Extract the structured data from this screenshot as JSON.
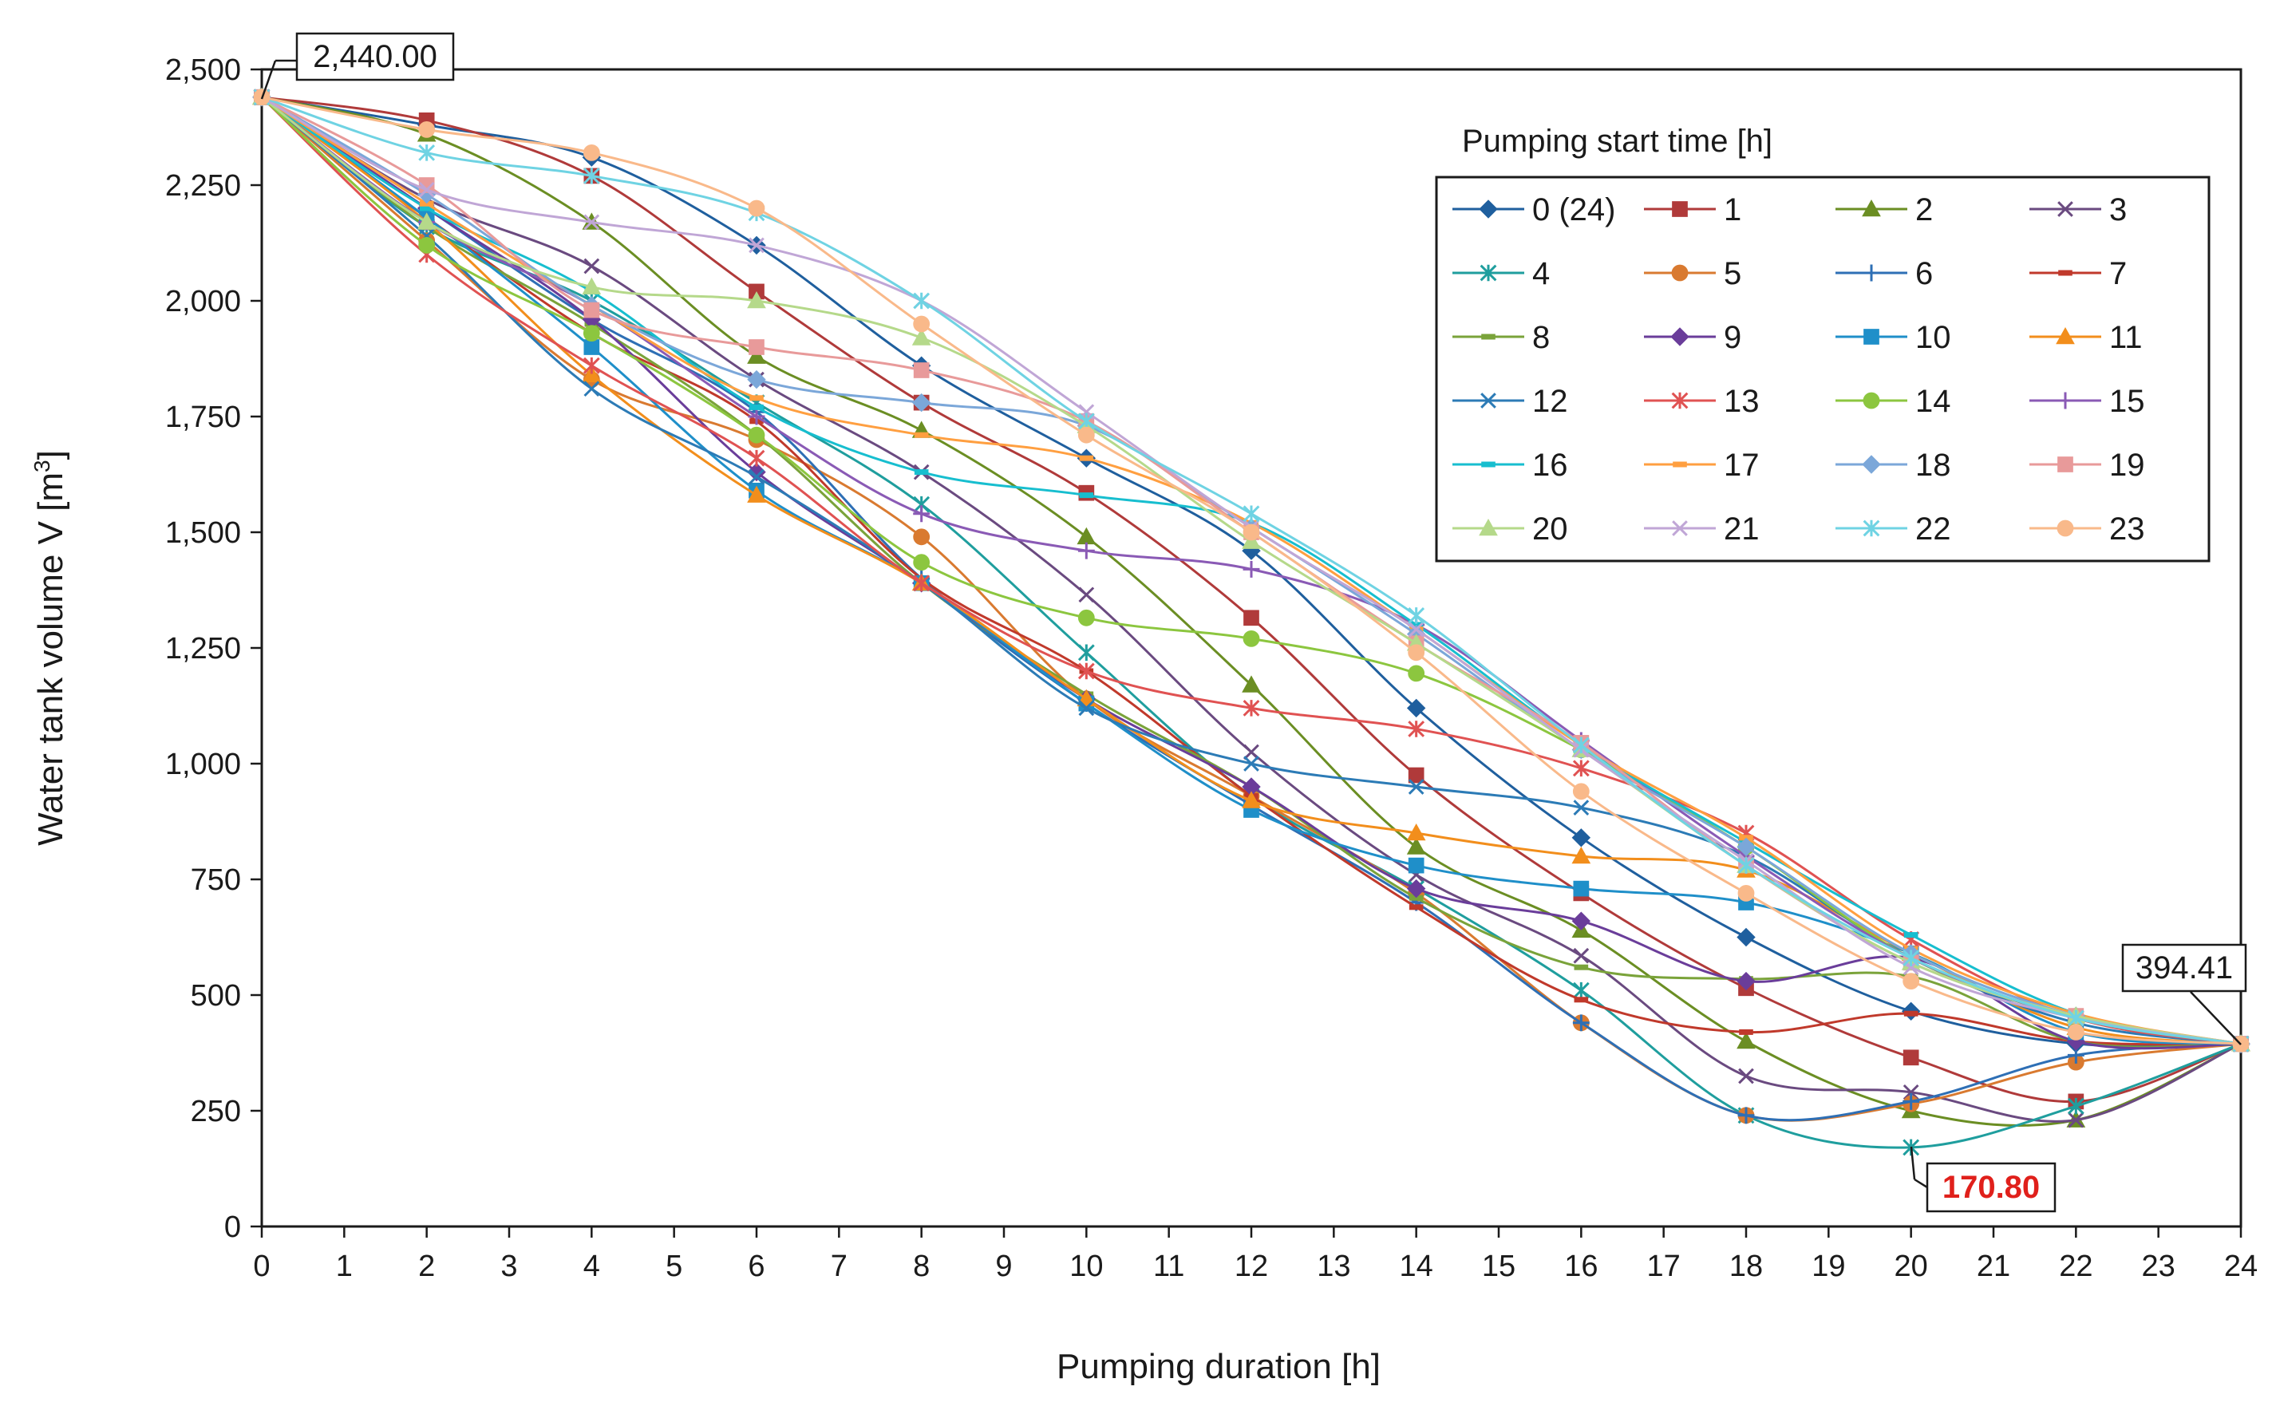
{
  "chart_data": {
    "type": "line",
    "title": "",
    "xlabel": "Pumping  duration [h]",
    "ylabel": "Water tank volume  V [m³]",
    "ylabel_main": "Water tank volume  V [m",
    "ylabel_sup": "3",
    "ylabel_end": "]",
    "xlim": [
      0,
      24
    ],
    "ylim": [
      0,
      2500
    ],
    "x_ticks": [
      "0",
      "1",
      "2",
      "3",
      "4",
      "5",
      "6",
      "7",
      "8",
      "9",
      "10",
      "11",
      "12",
      "13",
      "14",
      "15",
      "16",
      "17",
      "18",
      "19",
      "20",
      "21",
      "22",
      "23",
      "24"
    ],
    "y_ticks": [
      "0",
      "250",
      "500",
      "750",
      "1,000",
      "1,250",
      "1,500",
      "1,750",
      "2,000",
      "2,250",
      "2,500"
    ],
    "grid": false,
    "x": [
      0,
      2,
      4,
      6,
      8,
      10,
      12,
      14,
      16,
      18,
      20,
      22,
      24
    ],
    "legend": {
      "title": "Pumping start time [h]",
      "position": "top-right"
    },
    "series": [
      {
        "name": "0 (24)",
        "color": "#1f5f9e",
        "marker": "diamond",
        "values": [
          2440,
          2380,
          2310,
          2120,
          1860,
          1660,
          1460,
          1120,
          840,
          625,
          465,
          395,
          394.41
        ]
      },
      {
        "name": "1",
        "color": "#b03a3a",
        "marker": "square",
        "values": [
          2440,
          2390,
          2270,
          2020,
          1780,
          1585,
          1315,
          975,
          720,
          515,
          365,
          270,
          394.41
        ]
      },
      {
        "name": "2",
        "color": "#6b8e23",
        "marker": "triangle",
        "values": [
          2440,
          2360,
          2170,
          1880,
          1720,
          1490,
          1170,
          820,
          640,
          400,
          250,
          230,
          394.41
        ]
      },
      {
        "name": "3",
        "color": "#6a4a80",
        "marker": "x",
        "values": [
          2440,
          2220,
          2075,
          1830,
          1630,
          1365,
          1025,
          760,
          585,
          325,
          290,
          230,
          394.41
        ]
      },
      {
        "name": "4",
        "color": "#1f9e9e",
        "marker": "star",
        "values": [
          2440,
          2160,
          2000,
          1780,
          1560,
          1240,
          930,
          730,
          510,
          240,
          170.8,
          260,
          394.41
        ]
      },
      {
        "name": "5",
        "color": "#d97a30",
        "marker": "circle",
        "values": [
          2440,
          2130,
          1830,
          1700,
          1490,
          1140,
          930,
          720,
          440,
          240,
          265,
          355,
          394.41
        ]
      },
      {
        "name": "6",
        "color": "#2e6fb5",
        "marker": "plus",
        "values": [
          2440,
          2200,
          1960,
          1760,
          1400,
          1130,
          910,
          700,
          440,
          240,
          270,
          370,
          394.41
        ]
      },
      {
        "name": "7",
        "color": "#c0392b",
        "marker": "dash",
        "values": [
          2440,
          2180,
          1930,
          1740,
          1400,
          1200,
          930,
          690,
          490,
          420,
          460,
          400,
          394.41
        ]
      },
      {
        "name": "8",
        "color": "#7aa33a",
        "marker": "dash",
        "values": [
          2440,
          2160,
          1950,
          1710,
          1390,
          1150,
          950,
          710,
          560,
          535,
          540,
          400,
          394.41
        ]
      },
      {
        "name": "9",
        "color": "#6a3d9a",
        "marker": "diamond",
        "values": [
          2440,
          2200,
          1960,
          1630,
          1390,
          1140,
          950,
          730,
          660,
          530,
          580,
          400,
          394.41
        ]
      },
      {
        "name": "10",
        "color": "#1f8fc9",
        "marker": "square",
        "values": [
          2440,
          2180,
          1900,
          1590,
          1390,
          1130,
          900,
          780,
          730,
          700,
          590,
          420,
          394.41
        ]
      },
      {
        "name": "11",
        "color": "#f28e1c",
        "marker": "triangle",
        "values": [
          2440,
          2170,
          1840,
          1580,
          1390,
          1140,
          920,
          850,
          800,
          770,
          590,
          430,
          394.41
        ]
      },
      {
        "name": "12",
        "color": "#2c7bb6",
        "marker": "x",
        "values": [
          2440,
          2140,
          1810,
          1620,
          1390,
          1120,
          1000,
          950,
          905,
          800,
          580,
          440,
          394.41
        ]
      },
      {
        "name": "13",
        "color": "#e05252",
        "marker": "star",
        "values": [
          2440,
          2100,
          1860,
          1660,
          1390,
          1200,
          1120,
          1075,
          990,
          850,
          620,
          450,
          394.41
        ]
      },
      {
        "name": "14",
        "color": "#8cc63f",
        "marker": "circle",
        "values": [
          2440,
          2120,
          1930,
          1710,
          1435,
          1315,
          1270,
          1195,
          1030,
          820,
          580,
          450,
          394.41
        ]
      },
      {
        "name": "15",
        "color": "#8a5ab5",
        "marker": "plus",
        "values": [
          2440,
          2170,
          1990,
          1750,
          1540,
          1460,
          1420,
          1300,
          1050,
          800,
          580,
          450,
          394.41
        ]
      },
      {
        "name": "16",
        "color": "#17becf",
        "marker": "dash",
        "values": [
          2440,
          2200,
          2020,
          1770,
          1630,
          1580,
          1520,
          1300,
          1040,
          830,
          630,
          460,
          394.41
        ]
      },
      {
        "name": "17",
        "color": "#ff9f40",
        "marker": "dash",
        "values": [
          2440,
          2210,
          1990,
          1790,
          1710,
          1660,
          1520,
          1290,
          1040,
          840,
          600,
          460,
          394.41
        ]
      },
      {
        "name": "18",
        "color": "#7ba7d9",
        "marker": "diamond",
        "values": [
          2440,
          2230,
          1990,
          1830,
          1780,
          1730,
          1510,
          1280,
          1030,
          820,
          590,
          455,
          394.41
        ]
      },
      {
        "name": "19",
        "color": "#e89a9a",
        "marker": "square",
        "values": [
          2440,
          2250,
          1980,
          1900,
          1850,
          1740,
          1500,
          1260,
          1045,
          780,
          570,
          455,
          394.41
        ]
      },
      {
        "name": "20",
        "color": "#b5d98a",
        "marker": "triangle",
        "values": [
          2440,
          2170,
          2030,
          2000,
          1920,
          1730,
          1480,
          1260,
          1030,
          780,
          570,
          455,
          394.41
        ]
      },
      {
        "name": "21",
        "color": "#c0a6d6",
        "marker": "x",
        "values": [
          2440,
          2240,
          2170,
          2120,
          2000,
          1760,
          1510,
          1290,
          1030,
          790,
          560,
          450,
          394.41
        ]
      },
      {
        "name": "22",
        "color": "#6fd3e3",
        "marker": "star",
        "values": [
          2440,
          2320,
          2270,
          2190,
          2000,
          1740,
          1540,
          1320,
          1040,
          780,
          580,
          450,
          394.41
        ]
      },
      {
        "name": "23",
        "color": "#f9b98a",
        "marker": "circle",
        "values": [
          2440,
          2370,
          2320,
          2200,
          1950,
          1710,
          1500,
          1240,
          940,
          720,
          530,
          420,
          394.41
        ]
      }
    ],
    "annotations": {
      "start": {
        "x": 0,
        "y": 2440,
        "label": "2,440.00"
      },
      "end": {
        "x": 24,
        "y": 394.41,
        "label": "394.41"
      },
      "minimum": {
        "x": 20,
        "y": 170.8,
        "label": "170.80",
        "color": "#e0201b"
      }
    }
  }
}
